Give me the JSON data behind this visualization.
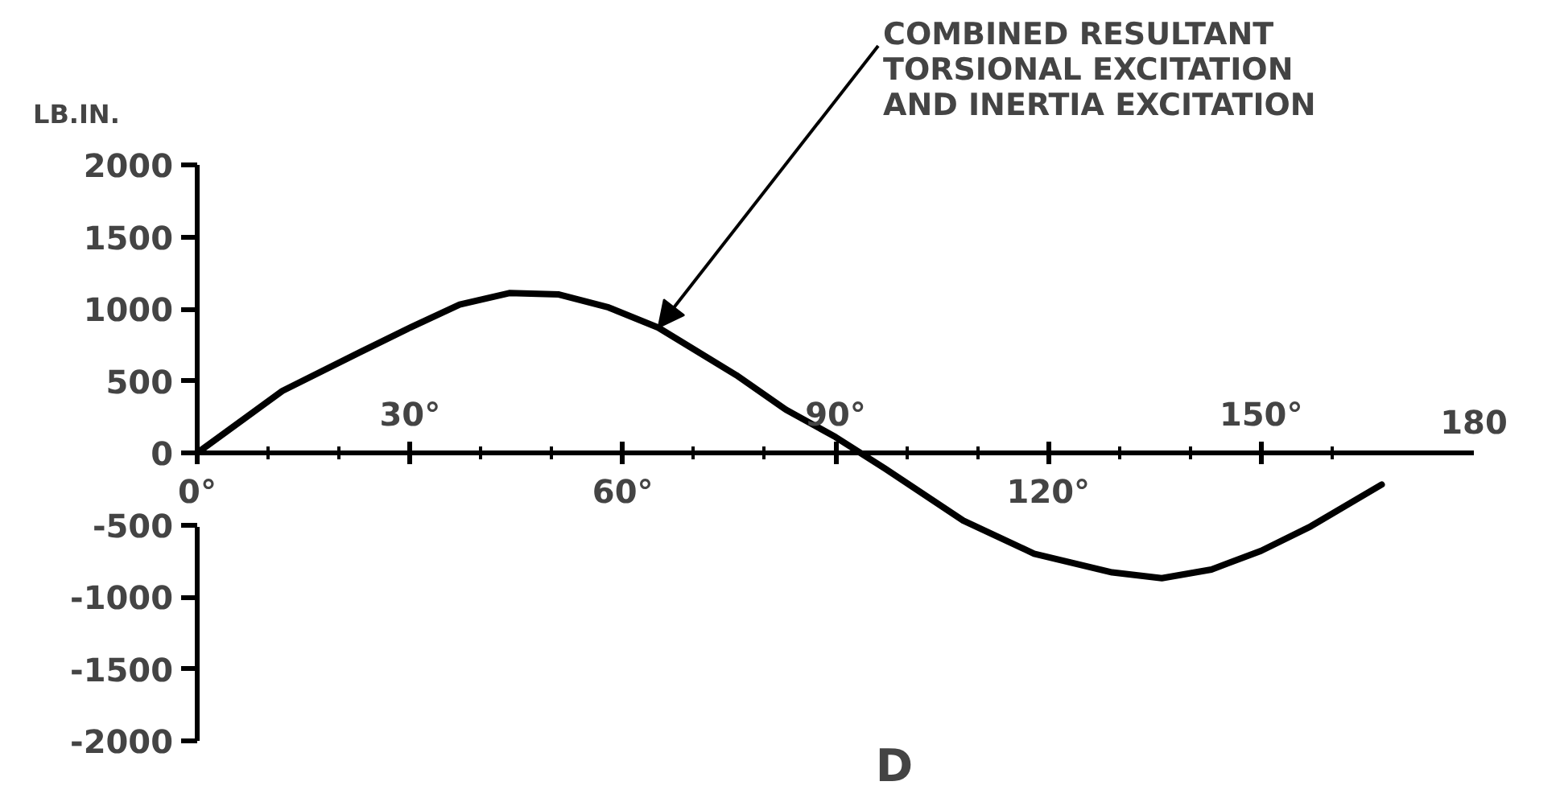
{
  "chart_data": {
    "type": "line",
    "title": "D",
    "ylabel": "LB.IN.",
    "x": [
      0,
      12,
      23,
      30,
      37,
      44,
      51,
      58,
      65,
      76,
      83,
      90,
      97,
      108,
      118,
      129,
      136,
      143,
      150,
      157,
      167
    ],
    "series": [
      {
        "color": "#000000",
        "values": [
          0,
          430,
          700,
          870,
          1030,
          1110,
          1100,
          1010,
          870,
          540,
          300,
          110,
          -110,
          -470,
          -700,
          -830,
          -870,
          -810,
          -680,
          -510,
          -220
        ]
      }
    ],
    "xlim": [
      0,
      180
    ],
    "ylim": [
      -2000,
      2000
    ],
    "x2lim": [
      0,
      180
    ],
    "xticks": [
      {
        "value": 0,
        "label": "0°"
      },
      {
        "value": 10,
        "label": null
      },
      {
        "value": 20,
        "label": null
      },
      {
        "value": 40,
        "label": null
      },
      {
        "value": 50,
        "label": null
      },
      {
        "value": 60,
        "label": "60°"
      },
      {
        "value": 70,
        "label": null
      },
      {
        "value": 80,
        "label": null
      },
      {
        "value": 100,
        "label": null
      },
      {
        "value": 110,
        "label": null
      },
      {
        "value": 120,
        "label": "120°"
      },
      {
        "value": 130,
        "label": null
      },
      {
        "value": 140,
        "label": null
      },
      {
        "value": 160,
        "label": null
      }
    ],
    "x2ticks": [
      {
        "value": 30,
        "label": "30°"
      },
      {
        "value": 90,
        "label": "90°"
      },
      {
        "value": 150,
        "label": "150°"
      },
      {
        "value": 180,
        "label": "180"
      }
    ],
    "yticks": [
      -2000,
      -1500,
      -1000,
      -500,
      0,
      500,
      1000,
      1500,
      2000
    ],
    "annotations": [
      {
        "text": "COMBINED RESULTANT\nTORSIONAL EXCITATION\nAND INERTIA EXCITATION",
        "x": 65,
        "y": 870
      }
    ],
    "grid": false,
    "line_style": "solid"
  }
}
